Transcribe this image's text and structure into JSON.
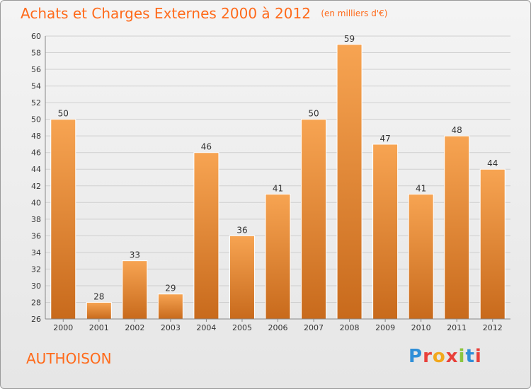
{
  "title": "Achats et Charges Externes 2000 à 2012",
  "subtitle": "(en milliers d'€)",
  "commune": "AUTHOISON",
  "logo": {
    "letters": [
      "P",
      "r",
      "o",
      "x",
      "i",
      "t",
      "i"
    ],
    "colors": [
      "#2f8fd8",
      "#e8403a",
      "#f2a81c",
      "#e8403a",
      "#8cc63f",
      "#2f8fd8",
      "#e8403a"
    ]
  },
  "colors": {
    "accent": "#ff6a1a",
    "bar_top": "#f7a452",
    "bar_bottom": "#c86a1c"
  },
  "chart_data": {
    "type": "bar",
    "categories": [
      "2000",
      "2001",
      "2002",
      "2003",
      "2004",
      "2005",
      "2006",
      "2007",
      "2008",
      "2009",
      "2010",
      "2011",
      "2012"
    ],
    "values": [
      50,
      28,
      33,
      29,
      46,
      36,
      41,
      50,
      59,
      47,
      41,
      48,
      44
    ],
    "ylim": [
      26,
      60
    ],
    "yticks": [
      26,
      28,
      30,
      32,
      34,
      36,
      38,
      40,
      42,
      44,
      46,
      48,
      50,
      52,
      54,
      56,
      58,
      60
    ],
    "grid": true,
    "legend": "none"
  }
}
